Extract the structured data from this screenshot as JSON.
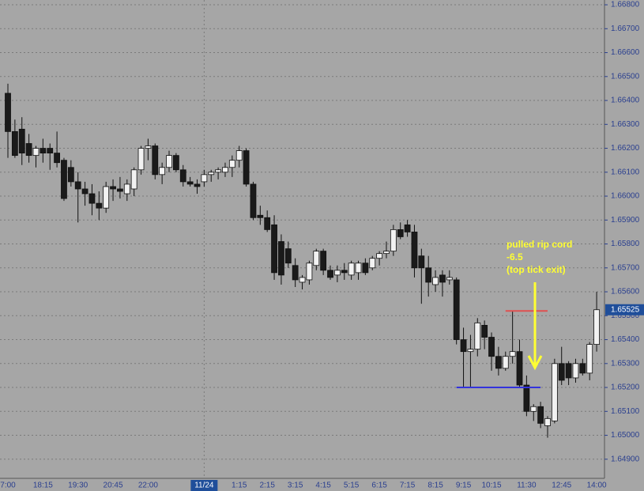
{
  "chart_data": {
    "type": "candlestick",
    "categories": [
      "7:00",
      null,
      null,
      null,
      null,
      "18:15",
      null,
      null,
      null,
      null,
      "19:30",
      null,
      null,
      null,
      null,
      "20:45",
      null,
      null,
      null,
      null,
      "22:00",
      null,
      null,
      null,
      null,
      null,
      null,
      null,
      "11/24",
      null,
      null,
      null,
      null,
      "1:15",
      null,
      null,
      null,
      "2:15",
      null,
      null,
      null,
      "3:15",
      null,
      null,
      null,
      "4:15",
      null,
      null,
      null,
      "5:15",
      null,
      null,
      null,
      "6:15",
      null,
      null,
      null,
      "7:15",
      null,
      null,
      null,
      "8:15",
      null,
      null,
      null,
      "9:15",
      null,
      null,
      null,
      "10:15",
      null,
      null,
      null,
      null,
      "11:30",
      null,
      null,
      null,
      null,
      "12:45",
      null,
      null,
      null,
      null,
      "14:00"
    ],
    "open": [
      1.6643,
      1.6627,
      1.6628,
      1.6622,
      1.6617,
      1.662,
      1.662,
      1.6618,
      1.6615,
      1.6612,
      1.6606,
      1.6603,
      1.6601,
      1.6597,
      1.6595,
      1.6604,
      1.6603,
      1.6601,
      1.6603,
      1.6611,
      1.662,
      1.6621,
      1.6609,
      1.6612,
      1.6617,
      1.6611,
      1.6606,
      1.6605,
      1.6606,
      1.6609,
      1.661,
      1.661,
      1.6612,
      1.6615,
      1.6619,
      1.6605,
      1.6592,
      1.6591,
      1.6588,
      1.6581,
      1.6578,
      1.6571,
      1.6564,
      1.6565,
      1.6571,
      1.6577,
      1.6569,
      1.6567,
      1.6569,
      1.6567,
      1.6568,
      1.6572,
      1.657,
      1.6574,
      1.6576,
      1.6577,
      1.6586,
      1.6588,
      1.6585,
      1.6575,
      1.657,
      1.6563,
      1.6567,
      1.6565,
      1.6565,
      1.654,
      1.6535,
      1.6536,
      1.6546,
      1.6541,
      1.6533,
      1.6528,
      1.6533,
      1.6535,
      1.6521,
      1.651,
      1.6512,
      1.6504,
      1.6506,
      1.653,
      1.653,
      1.6524,
      1.653,
      1.6526,
      1.6538
    ],
    "high": [
      1.6647,
      1.6632,
      1.6633,
      1.6626,
      1.6621,
      1.6624,
      1.6622,
      1.6627,
      1.6616,
      1.6615,
      1.661,
      1.6606,
      1.6605,
      1.6602,
      1.6606,
      1.6607,
      1.6608,
      1.6607,
      1.6612,
      1.6621,
      1.6624,
      1.6622,
      1.6614,
      1.6619,
      1.6618,
      1.6613,
      1.6608,
      1.6607,
      1.6611,
      1.6611,
      1.6612,
      1.6614,
      1.6617,
      1.6621,
      1.662,
      1.6606,
      1.6596,
      1.6594,
      1.6592,
      1.6584,
      1.6581,
      1.6574,
      1.6567,
      1.6573,
      1.6578,
      1.6578,
      1.6571,
      1.6571,
      1.6572,
      1.6573,
      1.6573,
      1.6574,
      1.6575,
      1.6577,
      1.6581,
      1.6588,
      1.6589,
      1.659,
      1.6588,
      1.6578,
      1.6575,
      1.6569,
      1.6569,
      1.6569,
      1.6566,
      1.6545,
      1.6542,
      1.6549,
      1.6548,
      1.6543,
      1.6537,
      1.6535,
      1.6552,
      1.654,
      1.6525,
      1.6513,
      1.6514,
      1.6508,
      1.6532,
      1.6537,
      1.6531,
      1.6532,
      1.6532,
      1.6539,
      1.656
    ],
    "low": [
      1.6616,
      1.6616,
      1.6613,
      1.6614,
      1.6612,
      1.6614,
      1.6611,
      1.6612,
      1.6598,
      1.6604,
      1.6589,
      1.6596,
      1.6592,
      1.659,
      1.6593,
      1.6598,
      1.6599,
      1.6598,
      1.66,
      1.6609,
      1.6615,
      1.6607,
      1.6605,
      1.661,
      1.661,
      1.6604,
      1.6604,
      1.6601,
      1.6604,
      1.6606,
      1.6607,
      1.6608,
      1.6608,
      1.6612,
      1.6604,
      1.659,
      1.6588,
      1.6585,
      1.6565,
      1.6563,
      1.657,
      1.6562,
      1.6561,
      1.6563,
      1.6569,
      1.6567,
      1.6565,
      1.6564,
      1.6565,
      1.6565,
      1.6565,
      1.6567,
      1.6569,
      1.6571,
      1.6574,
      1.6575,
      1.6582,
      1.6583,
      1.6566,
      1.6555,
      1.6558,
      1.656,
      1.6558,
      1.6563,
      1.6538,
      1.652,
      1.652,
      1.6533,
      1.6536,
      1.6527,
      1.6525,
      1.6527,
      1.653,
      1.652,
      1.6508,
      1.6506,
      1.6503,
      1.6499,
      1.6505,
      1.6521,
      1.6521,
      1.6522,
      1.6525,
      1.6523,
      1.6535
    ],
    "close": [
      1.6627,
      1.6617,
      1.6618,
      1.6617,
      1.662,
      1.6618,
      1.6618,
      1.6614,
      1.6599,
      1.6606,
      1.6603,
      1.6601,
      1.6597,
      1.6595,
      1.6604,
      1.6603,
      1.6602,
      1.6605,
      1.6611,
      1.662,
      1.6621,
      1.6609,
      1.6612,
      1.6617,
      1.6611,
      1.6606,
      1.6605,
      1.6604,
      1.6609,
      1.661,
      1.6611,
      1.6612,
      1.6615,
      1.6619,
      1.6605,
      1.6591,
      1.6591,
      1.6586,
      1.6568,
      1.6567,
      1.6572,
      1.6565,
      1.6566,
      1.6572,
      1.6577,
      1.6569,
      1.6566,
      1.6569,
      1.6568,
      1.6572,
      1.6572,
      1.6568,
      1.6574,
      1.6576,
      1.6577,
      1.6586,
      1.6583,
      1.6585,
      1.657,
      1.657,
      1.6564,
      1.6566,
      1.6564,
      1.6566,
      1.654,
      1.6535,
      1.6536,
      1.6547,
      1.6541,
      1.6533,
      1.6528,
      1.6533,
      1.6535,
      1.6521,
      1.651,
      1.6512,
      1.6505,
      1.6507,
      1.653,
      1.6523,
      1.6524,
      1.653,
      1.6526,
      1.6538,
      1.65525
    ],
    "ylim": [
      1.6482,
      1.6682
    ],
    "yticks": [
      {
        "value": 1.668,
        "label": "1.66800"
      },
      {
        "value": 1.667,
        "label": "1.66700"
      },
      {
        "value": 1.666,
        "label": "1.66600"
      },
      {
        "value": 1.665,
        "label": "1.66500"
      },
      {
        "value": 1.664,
        "label": "1.66400"
      },
      {
        "value": 1.663,
        "label": "1.66300"
      },
      {
        "value": 1.662,
        "label": "1.66200"
      },
      {
        "value": 1.661,
        "label": "1.66100"
      },
      {
        "value": 1.66,
        "label": "1.66000"
      },
      {
        "value": 1.659,
        "label": "1.65900"
      },
      {
        "value": 1.658,
        "label": "1.65800"
      },
      {
        "value": 1.657,
        "label": "1.65700"
      },
      {
        "value": 1.656,
        "label": "1.65600"
      },
      {
        "value": 1.655,
        "label": "1.65500"
      },
      {
        "value": 1.654,
        "label": "1.65400"
      },
      {
        "value": 1.653,
        "label": "1.65300"
      },
      {
        "value": 1.652,
        "label": "1.65200"
      },
      {
        "value": 1.651,
        "label": "1.65100"
      },
      {
        "value": 1.65,
        "label": "1.65000"
      },
      {
        "value": 1.649,
        "label": "1.64900"
      }
    ],
    "last_price": {
      "value": 1.65525,
      "label": "1.65525"
    },
    "levels": [
      {
        "value": 1.6552,
        "color": "#e05050",
        "from": 71,
        "to": 77
      },
      {
        "value": 1.652,
        "color": "#3333dd",
        "from": 64,
        "to": 76
      }
    ],
    "annotation": [
      "pulled rip cord",
      "-6.5",
      "(top tick exit)"
    ],
    "grid": true,
    "up_color": "#f2f2f2",
    "down_color": "#1a1a1a",
    "background": "#a6a6a6"
  }
}
